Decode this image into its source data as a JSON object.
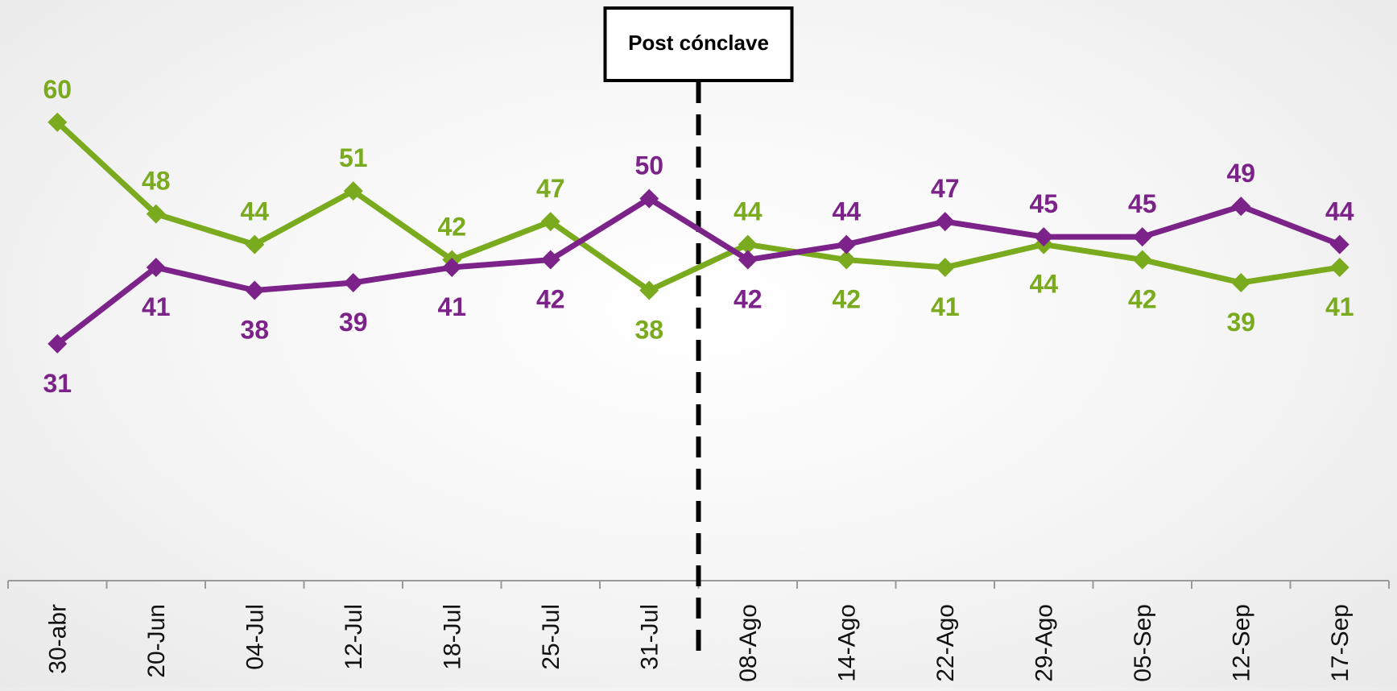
{
  "chart_data": {
    "type": "line",
    "categories": [
      "30-abr",
      "20-Jun",
      "04-Jul",
      "12-Jul",
      "18-Jul",
      "25-Jul",
      "31-Jul",
      "08-Ago",
      "14-Ago",
      "22-Ago",
      "29-Ago",
      "05-Sep",
      "12-Sep",
      "17-Sep"
    ],
    "series": [
      {
        "color": "#7aaa1e",
        "values": [
          60,
          48,
          44,
          51,
          42,
          47,
          38,
          44,
          42,
          41,
          44,
          42,
          39,
          41
        ],
        "label_position": [
          "above",
          "above",
          "above",
          "above",
          "above",
          "above",
          "below",
          "above",
          "below",
          "below",
          "below",
          "below",
          "below",
          "below"
        ]
      },
      {
        "color": "#7b2388",
        "values": [
          31,
          41,
          38,
          39,
          41,
          42,
          50,
          42,
          44,
          47,
          45,
          45,
          49,
          44
        ],
        "label_position": [
          "below",
          "below",
          "below",
          "below",
          "below",
          "below",
          "above",
          "below",
          "above",
          "above",
          "above",
          "above",
          "above",
          "above"
        ]
      }
    ],
    "ylim": [
      0,
      76
    ],
    "grid": false,
    "legend": "none",
    "annotations": [
      {
        "text": "Post cónclave",
        "between": [
          "31-Jul",
          "08-Ago"
        ],
        "style": "dashed-vertical-line-with-box"
      }
    ]
  }
}
